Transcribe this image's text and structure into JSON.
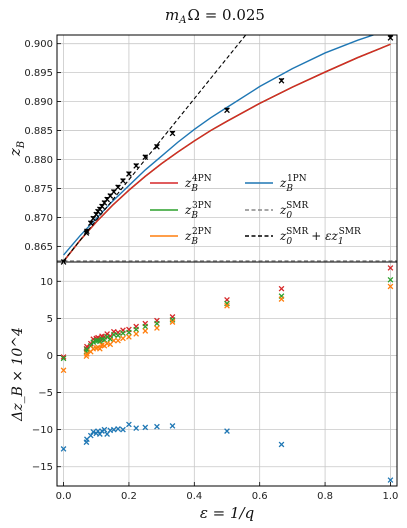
{
  "figure": {
    "title_base": "m",
    "title_sub": "A",
    "title_rest": "Ω = 0.025"
  },
  "chart_data": [
    {
      "type": "line",
      "name": "top",
      "ylabel_base": "z",
      "ylabel_sub": "B",
      "xlim": [
        -0.02,
        1.02
      ],
      "ylim": [
        0.8623,
        0.9015
      ],
      "yticks": [
        "0.865",
        "0.870",
        "0.875",
        "0.880",
        "0.885",
        "0.890",
        "0.895",
        "0.900"
      ],
      "ytick_values": [
        0.865,
        0.87,
        0.875,
        0.88,
        0.885,
        0.89,
        0.895,
        0.9
      ],
      "grid": true,
      "legend_position": "lower-right",
      "legend": [
        {
          "key": "4pn",
          "base": "z",
          "sub": "B",
          "sup": "4PN",
          "color": "#d62728",
          "style": "solid"
        },
        {
          "key": "1pn",
          "base": "z",
          "sub": "B",
          "sup": "1PN",
          "color": "#1f77b4",
          "style": "solid"
        },
        {
          "key": "3pn",
          "base": "z",
          "sub": "B",
          "sup": "3PN",
          "color": "#2ca02c",
          "style": "solid"
        },
        {
          "key": "smr",
          "base": "z",
          "sub": "0",
          "sup": "SMR",
          "color": "#888888",
          "style": "dashed"
        },
        {
          "key": "2pn",
          "base": "z",
          "sub": "B",
          "sup": "2PN",
          "color": "#ff7f0e",
          "style": "solid"
        },
        {
          "key": "smr1",
          "base": "z",
          "sub": "0",
          "sup": "SMR",
          "plus": "+ εz",
          "sub2": "1",
          "sup2": "SMR",
          "color": "#000000",
          "style": "dashed"
        }
      ],
      "series": [
        {
          "name": "1PN",
          "color": "#1f77b4",
          "style": "solid",
          "x": [
            0,
            0.05,
            0.1,
            0.15,
            0.2,
            0.25,
            0.3,
            0.35,
            0.4,
            0.45,
            0.5,
            0.6,
            0.7,
            0.8,
            0.9,
            1.0
          ],
          "y": [
            0.8635,
            0.8668,
            0.8698,
            0.8728,
            0.8755,
            0.8782,
            0.8806,
            0.883,
            0.8852,
            0.8872,
            0.889,
            0.8926,
            0.8957,
            0.8984,
            0.9006,
            0.9025
          ]
        },
        {
          "name": "2PN",
          "color": "#ff7f0e",
          "style": "solid",
          "x": [
            0,
            0.05,
            0.1,
            0.15,
            0.2,
            0.25,
            0.3,
            0.35,
            0.4,
            0.45,
            0.5,
            0.6,
            0.7,
            0.8,
            0.9,
            1.0
          ],
          "y": [
            0.8624,
            0.866,
            0.8692,
            0.8721,
            0.8747,
            0.8771,
            0.8793,
            0.8813,
            0.8832,
            0.885,
            0.8866,
            0.8897,
            0.8925,
            0.8951,
            0.8976,
            0.8999
          ]
        },
        {
          "name": "3PN",
          "color": "#2ca02c",
          "style": "solid",
          "x": [
            0,
            0.05,
            0.1,
            0.15,
            0.2,
            0.25,
            0.3,
            0.35,
            0.4,
            0.45,
            0.5,
            0.6,
            0.7,
            0.8,
            0.9,
            1.0
          ],
          "y": [
            0.8624,
            0.866,
            0.8692,
            0.8721,
            0.8747,
            0.8771,
            0.8793,
            0.8813,
            0.8832,
            0.885,
            0.8866,
            0.8897,
            0.8925,
            0.8951,
            0.8976,
            0.8999
          ]
        },
        {
          "name": "4PN",
          "color": "#d62728",
          "style": "solid",
          "x": [
            0,
            0.05,
            0.1,
            0.15,
            0.2,
            0.25,
            0.3,
            0.35,
            0.4,
            0.45,
            0.5,
            0.6,
            0.7,
            0.8,
            0.9,
            1.0
          ],
          "y": [
            0.8624,
            0.866,
            0.8692,
            0.8721,
            0.8747,
            0.8771,
            0.8793,
            0.8813,
            0.8832,
            0.885,
            0.8866,
            0.8897,
            0.8925,
            0.8951,
            0.8976,
            0.8999
          ]
        },
        {
          "name": "SMR",
          "color": "#888888",
          "style": "dashed",
          "x": [
            -0.02,
            1.02
          ],
          "y": [
            0.8625,
            0.8625
          ]
        },
        {
          "name": "SMR+eps",
          "color": "#000000",
          "style": "dashed",
          "x": [
            0,
            0.1,
            0.2,
            0.3,
            0.4,
            0.5,
            0.56
          ],
          "y": [
            0.8625,
            0.8695,
            0.8765,
            0.8835,
            0.8905,
            0.8975,
            0.9017
          ]
        }
      ],
      "points": {
        "x": [
          0.0,
          0.07,
          0.0714,
          0.0833,
          0.0909,
          0.1,
          0.1053,
          0.1111,
          0.1176,
          0.125,
          0.1333,
          0.1429,
          0.1538,
          0.1667,
          0.1818,
          0.2,
          0.2222,
          0.25,
          0.2857,
          0.3333,
          0.5,
          0.6667,
          1.0
        ],
        "y": [
          0.8623,
          0.8673,
          0.8676,
          0.869,
          0.8698,
          0.8705,
          0.871,
          0.8714,
          0.8719,
          0.8725,
          0.8731,
          0.8737,
          0.8744,
          0.8752,
          0.8763,
          0.8775,
          0.8789,
          0.8804,
          0.8822,
          0.8845,
          0.8885,
          0.8936,
          0.901
        ],
        "color": "#000000"
      }
    },
    {
      "type": "scatter",
      "name": "bottom",
      "ylabel": "Δz_B × 10^4",
      "xlabel": "ε = 1/q",
      "xlim": [
        -0.02,
        1.02
      ],
      "ylim": [
        -17.6,
        12.6
      ],
      "yticks": [
        "10",
        "5",
        "0",
        "−5",
        "−10",
        "−15"
      ],
      "ytick_values": [
        10,
        5,
        0,
        -5,
        -10,
        -15
      ],
      "xticks": [
        "0.0",
        "0.2",
        "0.4",
        "0.6",
        "0.8",
        "1.0"
      ],
      "xtick_values": [
        0.0,
        0.2,
        0.4,
        0.6,
        0.8,
        1.0
      ],
      "grid": true,
      "series": [
        {
          "name": "4PN",
          "color": "#d62728",
          "x": [
            0.0,
            0.07,
            0.0714,
            0.0833,
            0.0909,
            0.1,
            0.1053,
            0.1111,
            0.1176,
            0.125,
            0.1333,
            0.1429,
            0.1538,
            0.1667,
            0.1818,
            0.2,
            0.2222,
            0.25,
            0.2857,
            0.3333,
            0.5,
            0.6667,
            1.0
          ],
          "y": [
            -0.2,
            0.9,
            1.2,
            1.6,
            2.2,
            2.3,
            2.4,
            2.2,
            2.6,
            2.5,
            2.9,
            2.6,
            3.2,
            3.1,
            3.4,
            3.5,
            3.9,
            4.3,
            4.7,
            5.2,
            7.5,
            9.0,
            11.8
          ]
        },
        {
          "name": "3PN",
          "color": "#2ca02c",
          "x": [
            0.0,
            0.07,
            0.0714,
            0.0833,
            0.0909,
            0.1,
            0.1053,
            0.1111,
            0.1176,
            0.125,
            0.1333,
            0.1429,
            0.1538,
            0.1667,
            0.1818,
            0.2,
            0.2222,
            0.25,
            0.2857,
            0.3333,
            0.5,
            0.6667,
            1.0
          ],
          "y": [
            -0.4,
            0.5,
            0.8,
            1.3,
            1.8,
            2.0,
            2.0,
            1.9,
            2.2,
            2.1,
            2.5,
            2.2,
            2.8,
            2.7,
            3.0,
            3.1,
            3.5,
            3.9,
            4.3,
            4.8,
            7.0,
            8.0,
            10.2
          ]
        },
        {
          "name": "2PN",
          "color": "#ff7f0e",
          "x": [
            0.0,
            0.07,
            0.0714,
            0.0833,
            0.0909,
            0.1,
            0.1053,
            0.1111,
            0.1176,
            0.125,
            0.1333,
            0.1429,
            0.1538,
            0.1667,
            0.1818,
            0.2,
            0.2222,
            0.25,
            0.2857,
            0.3333,
            0.5,
            0.6667,
            1.0
          ],
          "y": [
            -2.0,
            -0.1,
            0.2,
            0.5,
            0.9,
            1.0,
            1.1,
            0.9,
            1.4,
            1.3,
            1.6,
            1.5,
            2.0,
            2.0,
            2.3,
            2.5,
            2.9,
            3.3,
            3.7,
            4.5,
            6.7,
            7.6,
            9.3
          ]
        },
        {
          "name": "1PN",
          "color": "#1f77b4",
          "x": [
            0.0,
            0.07,
            0.0714,
            0.0833,
            0.0909,
            0.1,
            0.1053,
            0.1111,
            0.1176,
            0.125,
            0.1333,
            0.1429,
            0.1538,
            0.1667,
            0.1818,
            0.2,
            0.2222,
            0.25,
            0.2857,
            0.3333,
            0.5,
            0.6667,
            1.0
          ],
          "y": [
            -12.6,
            -11.7,
            -11.3,
            -10.8,
            -10.3,
            -10.5,
            -10.2,
            -10.6,
            -10.2,
            -10.0,
            -10.6,
            -10.1,
            -10.0,
            -9.9,
            -10.0,
            -9.3,
            -9.8,
            -9.7,
            -9.6,
            -9.5,
            -10.2,
            -12.0,
            -16.8
          ]
        }
      ]
    }
  ]
}
